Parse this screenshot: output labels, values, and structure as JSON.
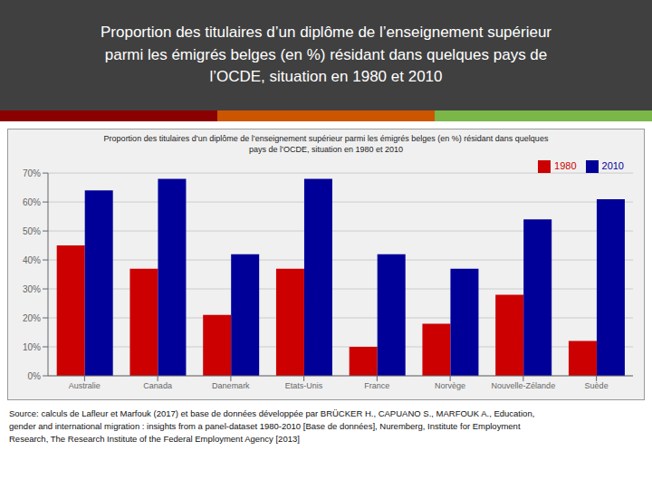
{
  "chart_data": {
    "type": "bar",
    "title": "Proportion des titulaires d’un diplôme de l’enseignement supérieur\nparmi les émigrés belges (en %) résidant dans quelques pays de\nl’OCDE, situation en 1980 et 2010",
    "subtitle": "Proportion des titulaires d’un diplôme de l’enseignement supérieur parmi les émigrés belges (en %) résidant dans quelques\npays de l’OCDE, situation en 1980 et 2010",
    "categories": [
      "Australie",
      "Canada",
      "Danemark",
      "Etats-Unis",
      "France",
      "Norvège",
      "Nouvelle-Zélande",
      "Suède"
    ],
    "series": [
      {
        "name": "1980",
        "color": "#CC0000",
        "values": [
          45,
          37,
          21,
          37,
          10,
          18,
          28,
          12
        ]
      },
      {
        "name": "2010",
        "color": "#000099",
        "values": [
          64,
          68,
          42,
          68,
          42,
          37,
          54,
          61
        ]
      }
    ],
    "ylim": [
      0,
      70
    ],
    "yticks": [
      {
        "value": 0,
        "label": "0%"
      },
      {
        "value": 10,
        "label": "10%"
      },
      {
        "value": 20,
        "label": "20%"
      },
      {
        "value": 30,
        "label": "30%"
      },
      {
        "value": 40,
        "label": "40%"
      },
      {
        "value": 50,
        "label": "50%"
      },
      {
        "value": 60,
        "label": "60%"
      },
      {
        "value": 70,
        "label": "70%"
      }
    ],
    "grid": true,
    "legend": "upper right",
    "annotations": [
      "Source: calculs de Lafleur et Marfouk (2017) et base de données développée par BRÜCKER H., CAPUANO S., MARFOUK A., Education,\ngender and international migration : insights from a panel-dataset 1980-2010 [Base de données], Nuremberg, Institute for Employment\nResearch, The Research Institute of the Federal Employment Agency [2013]"
    ]
  }
}
